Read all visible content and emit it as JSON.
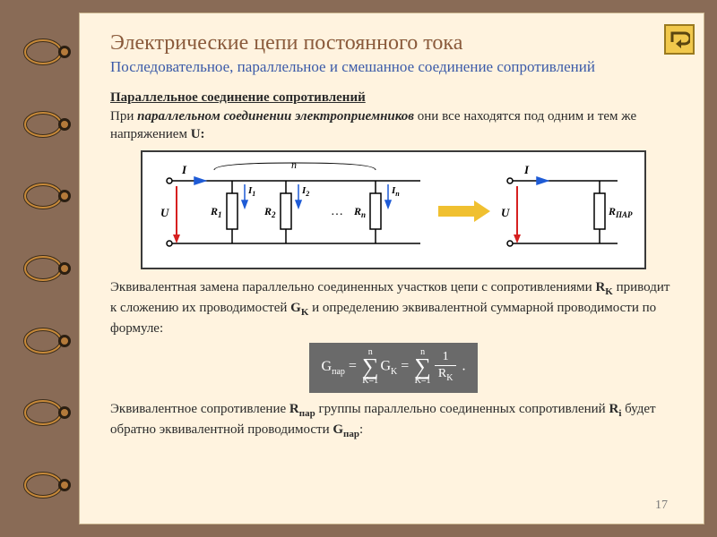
{
  "colors": {
    "frame": "#896b56",
    "page_bg": "#fff3df",
    "title1": "#8a5a3b",
    "title2": "#3a5aa8",
    "text": "#2a2a2a",
    "formula_bg": "#6a6a6a",
    "formula_fg": "#ffffff",
    "diagram_border": "#3a3a3a",
    "button_bg": "#f1c84c",
    "button_border": "#9a7a20",
    "arrow_blue": "#1e5bd6",
    "arrow_red": "#d62020",
    "arrow_yellow": "#f0c030"
  },
  "title1": "Электрические цепи постоянного тока",
  "title2": "Последовательное, параллельное и смешанное соединение сопротивлений",
  "heading": "Параллельное соединение сопротивлений",
  "p1_a": "При ",
  "p1_b": "параллельном соединении электроприемников",
  "p1_c": " они все находятся под одним и тем же напряжением ",
  "p1_d": "U:",
  "p2_a": "Эквивалентная замена параллельно соединенных участков цепи с сопротивлениями ",
  "p2_b": "R",
  "p2_b_sub": "K",
  "p2_c": " приводит к сложению их проводимостей ",
  "p2_d": "G",
  "p2_d_sub": "K",
  "p2_e": " и определению эквивалентной суммарной проводимости по формуле:",
  "p3_a": "Эквивалентное сопротивление ",
  "p3_b": "R",
  "p3_b_sub": "пар",
  "p3_c": " группы параллельно соединенных сопротивлений ",
  "p3_d": "R",
  "p3_d_sub": "i",
  "p3_e": " будет обратно эквивалентной проводимости ",
  "p3_f": "G",
  "p3_f_sub": "пар",
  "p3_g": ":",
  "formula": {
    "lhs": "G",
    "lhs_sub": "пар",
    "eq": " = ",
    "sum_top": "n",
    "sum_bot": "K=1",
    "term1": "G",
    "term1_sub": "K",
    "eq2": " = ",
    "frac_num": "1",
    "frac_den": "R",
    "frac_den_sub": "K",
    "end": " ."
  },
  "diagram": {
    "labels": {
      "I": "I",
      "U": "U",
      "n": "n",
      "Rpar": "R",
      "Rpar_sub": "ПАР"
    },
    "branches": [
      {
        "R": "R",
        "Rsub": "1",
        "I": "I",
        "Isub": "1"
      },
      {
        "R": "R",
        "Rsub": "2",
        "I": "I",
        "Isub": "2"
      },
      {
        "R": "R",
        "Rsub": "n",
        "I": "I",
        "Isub": "n"
      }
    ]
  },
  "page_number": "17",
  "back_button": "return-icon"
}
